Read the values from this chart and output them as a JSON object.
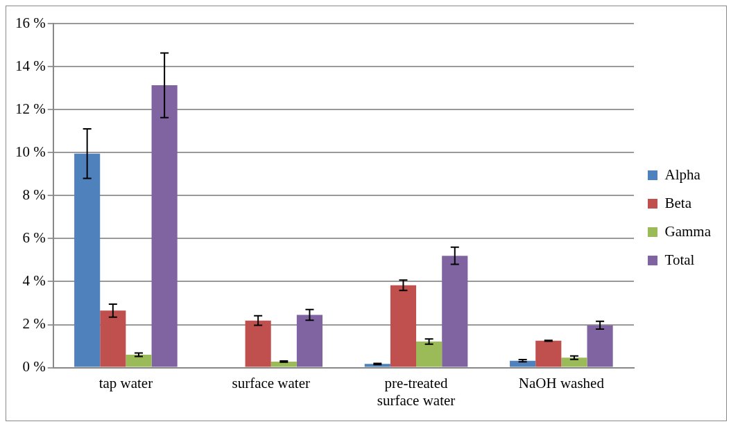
{
  "chart_data": {
    "type": "bar",
    "categories": [
      "tap water",
      "surface water",
      "pre-treated surface water",
      "NaOH washed"
    ],
    "series": [
      {
        "name": "Alpha",
        "color": "#4f81bd",
        "values": [
          9.95,
          null,
          0.17,
          0.32
        ],
        "errors": [
          1.15,
          null,
          0.03,
          0.05
        ]
      },
      {
        "name": "Beta",
        "color": "#c0504d",
        "values": [
          2.65,
          2.19,
          3.83,
          1.25
        ],
        "errors": [
          0.3,
          0.22,
          0.24,
          0.02
        ]
      },
      {
        "name": "Gamma",
        "color": "#9bbb59",
        "values": [
          0.6,
          0.28,
          1.21,
          0.46
        ],
        "errors": [
          0.08,
          0.03,
          0.12,
          0.08
        ]
      },
      {
        "name": "Total",
        "color": "#8064a2",
        "values": [
          13.13,
          2.45,
          5.2,
          1.97
        ],
        "errors": [
          1.5,
          0.25,
          0.4,
          0.18
        ]
      }
    ],
    "ylim": [
      0,
      16
    ],
    "yticks": [
      {
        "value": 0,
        "label": "0 %"
      },
      {
        "value": 2,
        "label": "2 %"
      },
      {
        "value": 4,
        "label": "4 %"
      },
      {
        "value": 6,
        "label": "6 %"
      },
      {
        "value": 8,
        "label": "8 %"
      },
      {
        "value": 10,
        "label": "10 %"
      },
      {
        "value": 12,
        "label": "12 %"
      },
      {
        "value": 14,
        "label": "14 %"
      },
      {
        "value": 16,
        "label": "16 %"
      }
    ],
    "grid": "y",
    "legend": "right"
  }
}
